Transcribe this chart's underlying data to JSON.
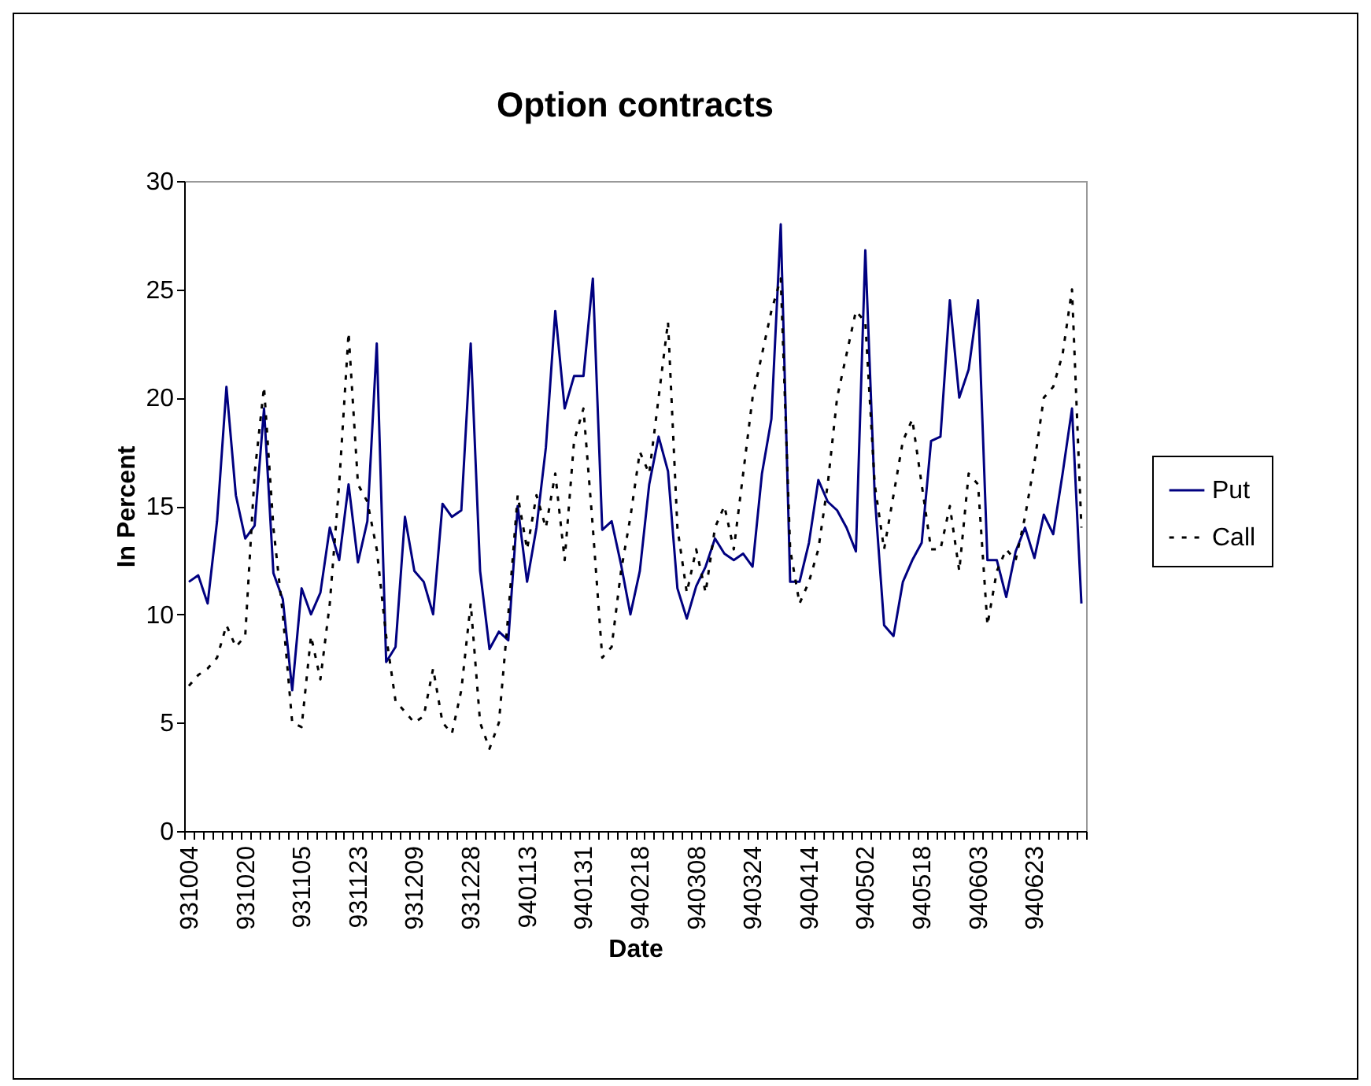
{
  "chart_data": {
    "type": "line",
    "title": "Option contracts",
    "xlabel": "Date",
    "ylabel": "In Percent",
    "categories": [
      "931004",
      null,
      null,
      null,
      null,
      null,
      "931020",
      null,
      null,
      null,
      null,
      null,
      "931105",
      null,
      null,
      null,
      null,
      null,
      "931123",
      null,
      null,
      null,
      null,
      null,
      "931209",
      null,
      null,
      null,
      null,
      null,
      "931228",
      null,
      null,
      null,
      null,
      null,
      "940113",
      null,
      null,
      null,
      null,
      null,
      "940131",
      null,
      null,
      null,
      null,
      null,
      "940218",
      null,
      null,
      null,
      null,
      null,
      "940308",
      null,
      null,
      null,
      null,
      null,
      "940324",
      null,
      null,
      null,
      null,
      null,
      "940414",
      null,
      null,
      null,
      null,
      null,
      "940502",
      null,
      null,
      null,
      null,
      null,
      "940518",
      null,
      null,
      null,
      null,
      null,
      "940603",
      null,
      null,
      null,
      null,
      null,
      "940623",
      null,
      null,
      null,
      null,
      null
    ],
    "series": [
      {
        "name": "Put",
        "color": "#000080",
        "line_style": "solid",
        "values": [
          11.5,
          11.8,
          10.5,
          14.3,
          20.5,
          15.5,
          13.5,
          14.1,
          19.5,
          11.9,
          10.7,
          6.5,
          11.2,
          10.0,
          11.0,
          14.0,
          12.5,
          16.0,
          12.4,
          14.3,
          22.5,
          7.8,
          8.5,
          14.5,
          12.0,
          11.5,
          10.0,
          15.1,
          14.5,
          14.8,
          22.5,
          12.0,
          8.4,
          9.2,
          8.8,
          15.0,
          11.5,
          14.0,
          17.7,
          24.0,
          19.5,
          21.0,
          21.0,
          25.5,
          13.9,
          14.3,
          12.3,
          10.0,
          12.0,
          16.0,
          18.2,
          16.6,
          11.2,
          9.8,
          11.3,
          12.2,
          13.5,
          12.8,
          12.5,
          12.8,
          12.2,
          16.5,
          19.0,
          28.0,
          11.5,
          11.5,
          13.3,
          16.2,
          15.2,
          14.8,
          14.0,
          12.9,
          26.8,
          15.5,
          9.5,
          9.0,
          11.5,
          12.5,
          13.3,
          18.0,
          18.2,
          24.5,
          20.0,
          21.3,
          24.5,
          12.5,
          12.5,
          10.8,
          12.9,
          14.0,
          12.6,
          14.6,
          13.7,
          16.5,
          19.5,
          10.5
        ]
      },
      {
        "name": "Call",
        "color": "#000000",
        "line_style": "dashed",
        "values": [
          6.7,
          7.2,
          7.5,
          8.0,
          9.5,
          8.5,
          9.0,
          16.5,
          20.5,
          14.0,
          10.0,
          5.0,
          4.8,
          9.0,
          7.0,
          10.5,
          16.0,
          23.0,
          16.0,
          15.2,
          13.0,
          9.0,
          6.0,
          5.5,
          5.0,
          5.3,
          7.5,
          5.0,
          4.5,
          6.5,
          10.5,
          5.0,
          3.8,
          5.0,
          10.0,
          15.5,
          13.0,
          15.5,
          14.0,
          16.5,
          12.5,
          18.0,
          19.5,
          14.0,
          8.0,
          8.5,
          12.0,
          14.5,
          17.5,
          16.5,
          20.0,
          23.5,
          14.0,
          11.0,
          13.0,
          11.0,
          14.0,
          15.0,
          13.0,
          16.5,
          20.0,
          22.0,
          24.0,
          25.5,
          13.0,
          10.5,
          11.5,
          13.0,
          16.0,
          20.0,
          22.0,
          24.0,
          23.5,
          16.0,
          13.0,
          15.5,
          18.0,
          19.0,
          16.0,
          13.0,
          13.0,
          15.0,
          12.0,
          16.5,
          16.0,
          9.5,
          12.0,
          13.0,
          12.5,
          14.5,
          17.0,
          20.0,
          20.5,
          22.0,
          25.0,
          14.0
        ]
      }
    ],
    "ylim": [
      0,
      30
    ],
    "yticks": [
      0,
      5,
      10,
      15,
      20,
      25,
      30
    ],
    "grid": false,
    "legend": "right",
    "marker": "none"
  }
}
